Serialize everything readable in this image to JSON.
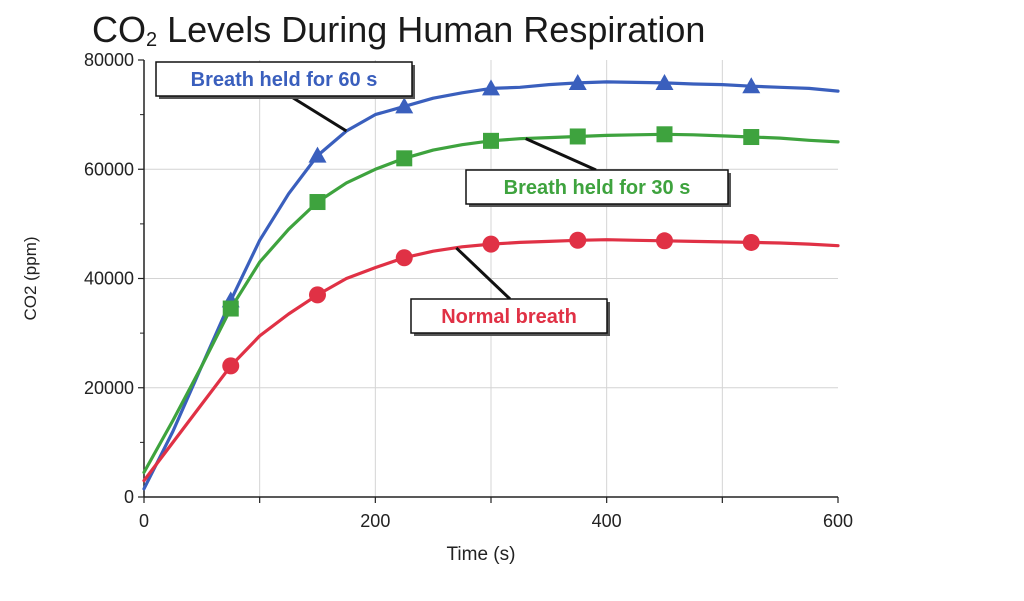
{
  "chart_data": {
    "type": "line",
    "title_main": "CO",
    "title_sub": "2",
    "title_rest": " Levels During Human Respiration",
    "xlabel": "Time (s)",
    "ylabel": "CO2 (ppm)",
    "xlim": [
      0,
      600
    ],
    "ylim": [
      0,
      80000
    ],
    "xticks": [
      0,
      200,
      400,
      600
    ],
    "yticks": [
      0,
      20000,
      40000,
      60000,
      80000
    ],
    "grid": true,
    "series": [
      {
        "name": "Breath held for 60 s",
        "color": "#3a5fbd",
        "marker": "triangle",
        "x": [
          0,
          25,
          50,
          75,
          100,
          125,
          150,
          175,
          200,
          225,
          250,
          275,
          300,
          325,
          350,
          375,
          400,
          425,
          450,
          475,
          500,
          525,
          550,
          575,
          600
        ],
        "y": [
          1500,
          12000,
          24000,
          36000,
          47000,
          55500,
          62500,
          67000,
          70000,
          71500,
          73000,
          74000,
          74800,
          75000,
          75500,
          75800,
          76000,
          75900,
          75800,
          75600,
          75500,
          75200,
          75000,
          74800,
          74300
        ],
        "marker_x": [
          75,
          150,
          225,
          300,
          375,
          450,
          525
        ],
        "marker_y": [
          36000,
          62500,
          71500,
          74800,
          75800,
          75800,
          75200
        ]
      },
      {
        "name": "Breath held for 30 s",
        "color": "#3ea33e",
        "marker": "square",
        "x": [
          0,
          25,
          50,
          75,
          100,
          125,
          150,
          175,
          200,
          225,
          250,
          275,
          300,
          325,
          350,
          375,
          400,
          425,
          450,
          475,
          500,
          525,
          550,
          575,
          600
        ],
        "y": [
          4500,
          14000,
          24000,
          34500,
          43000,
          49000,
          54000,
          57500,
          60000,
          62000,
          63500,
          64500,
          65200,
          65600,
          65800,
          66000,
          66200,
          66300,
          66400,
          66300,
          66100,
          65900,
          65700,
          65300,
          65000
        ],
        "marker_x": [
          75,
          150,
          225,
          300,
          375,
          450,
          525
        ],
        "marker_y": [
          34500,
          54000,
          62000,
          65200,
          66000,
          66400,
          65900
        ]
      },
      {
        "name": "Normal breath",
        "color": "#e03145",
        "marker": "circle",
        "x": [
          0,
          25,
          50,
          75,
          100,
          125,
          150,
          175,
          200,
          225,
          250,
          275,
          300,
          325,
          350,
          375,
          400,
          425,
          450,
          475,
          500,
          525,
          550,
          575,
          600
        ],
        "y": [
          3000,
          10000,
          17000,
          24000,
          29500,
          33500,
          37000,
          40000,
          42000,
          43800,
          45000,
          45800,
          46300,
          46600,
          46800,
          47000,
          47100,
          47000,
          46900,
          46800,
          46700,
          46600,
          46500,
          46300,
          46000
        ],
        "marker_x": [
          75,
          150,
          225,
          300,
          375,
          450,
          525
        ],
        "marker_y": [
          24000,
          37000,
          43800,
          46300,
          47000,
          46900,
          46600
        ]
      }
    ],
    "annotations": [
      {
        "text": "Breath held for 60 s",
        "series": 0,
        "point_x": 175,
        "point_y": 67000
      },
      {
        "text": "Breath held for 30 s",
        "series": 1,
        "point_x": 330,
        "point_y": 65600
      },
      {
        "text": "Normal breath",
        "series": 2,
        "point_x": 270,
        "point_y": 45600
      }
    ]
  }
}
